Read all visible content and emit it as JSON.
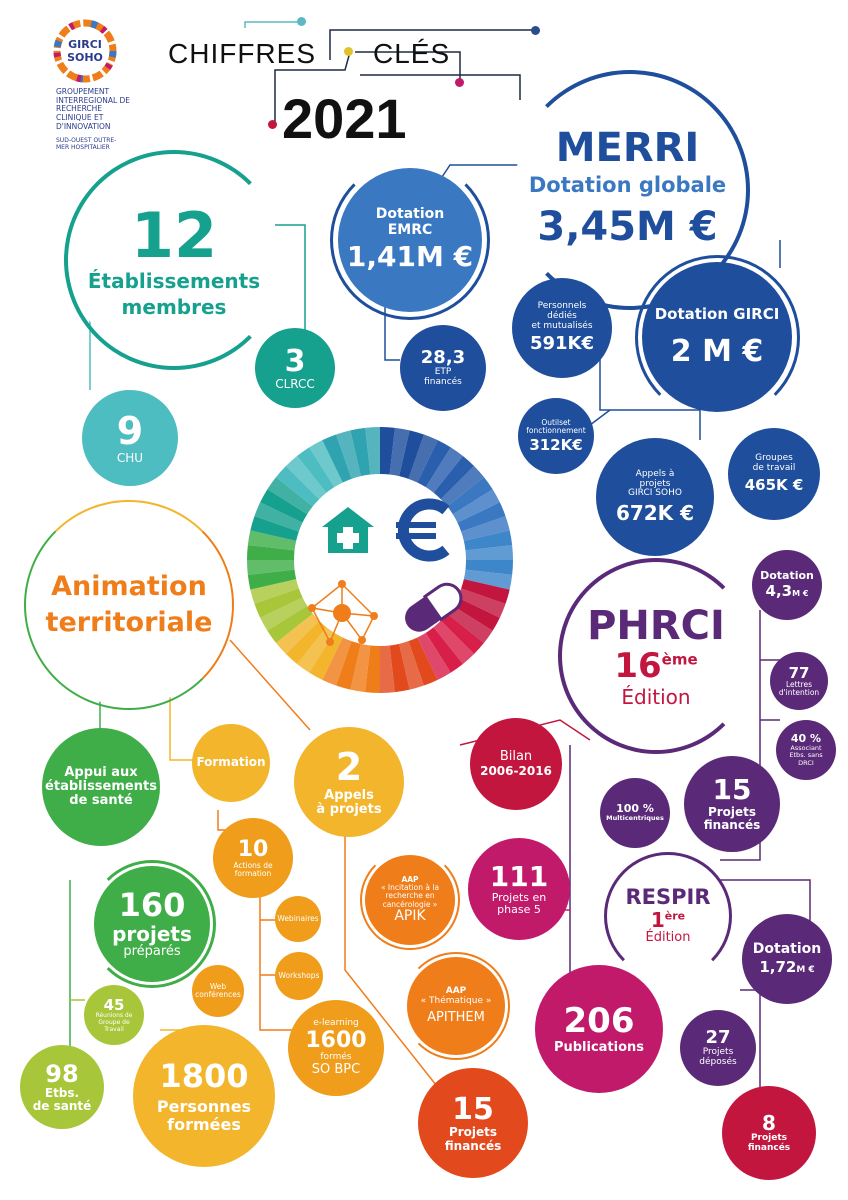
{
  "header": {
    "logo_line1": "GIRCI",
    "logo_line2": "SOHO",
    "org_name": "GROUPEMENT INTERREGIONAL DE RECHERCHE CLINIQUE ET D'INNOVATION",
    "org_sub": "SUD-OUEST OUTRE-MER HOSPITALIER",
    "title_left": "CHIFFRES",
    "title_right": "CLÉS",
    "year": "2021"
  },
  "merri": {
    "title": "MERRI",
    "subtitle": "Dotation globale",
    "value": "3,45M €",
    "emrc": {
      "label1": "Dotation",
      "label2": "EMRC",
      "value": "1,41M €"
    },
    "etp": {
      "value": "28,3",
      "label1": "ETP",
      "label2": "financés"
    },
    "girci": {
      "label": "Dotation GIRCI",
      "value": "2 M €"
    },
    "personnels": {
      "label1": "Personnels",
      "label2": "dédiés",
      "label3": "et mutualisés",
      "value": "591K€"
    },
    "outils": {
      "label1": "Outilset",
      "label2": "fonctionnement",
      "value": "312K€"
    },
    "appels": {
      "label1": "Appels à",
      "label2": "projets",
      "label3": "GIRCI SOHO",
      "value": "672K €"
    },
    "groupes": {
      "label1": "Groupes",
      "label2": "de travail",
      "value": "465K €"
    }
  },
  "etablissements": {
    "value": "12",
    "label1": "Établissements",
    "label2": "membres",
    "clrcc_value": "3",
    "clrcc_label": "CLRCC",
    "chu_value": "9",
    "chu_label": "CHU"
  },
  "animation": {
    "title1": "Animation",
    "title2": "territoriale",
    "appui": {
      "line1": "Appui aux",
      "line2": "établissements",
      "line3": "de santé"
    },
    "formation": "Formation",
    "appels": {
      "value": "2",
      "label1": "Appels",
      "label2": "à projets"
    },
    "actions": {
      "value": "10",
      "label1": "Actions de",
      "label2": "formation"
    },
    "webinaires": "Webinaires",
    "workshops": "Workshops",
    "webconf": {
      "line1": "Web",
      "line2": "conférences"
    },
    "elearning": {
      "label": "e-learning",
      "value": "1600",
      "label2": "formés",
      "label3": "SO BPC"
    },
    "projets_prep": {
      "value": "160",
      "label1": "projets",
      "label2": "préparés"
    },
    "reunions": {
      "value": "45",
      "label1": "Réunions de",
      "label2": "Groupe de",
      "label3": "Travail"
    },
    "etbs": {
      "value": "98",
      "label1": "Etbs.",
      "label2": "de santé"
    },
    "personnes": {
      "value": "1800",
      "label1": "Personnes",
      "label2": "formées"
    },
    "apik": {
      "label1": "AAP",
      "label2": "« Incitation à la",
      "label3": "recherche en",
      "label4": "cancérologie »",
      "value": "APIK"
    },
    "apithem": {
      "label1": "AAP",
      "label2": "« Thématique »",
      "value": "APITHEM"
    },
    "projets_fin": {
      "value": "15",
      "label1": "Projets",
      "label2": "financés"
    }
  },
  "phrci": {
    "title": "PHRCI",
    "edition_num": "16",
    "edition_sup": "ème",
    "edition_label": "Édition",
    "dotation": {
      "label": "Dotation",
      "value": "4,3",
      "unit": "M €"
    },
    "lettres": {
      "value": "77",
      "label1": "Lettres",
      "label2": "d'intention"
    },
    "associant": {
      "value": "40 %",
      "label1": "Associant",
      "label2": "Etbs. sans",
      "label3": "DRCI"
    },
    "projets": {
      "value": "15",
      "label1": "Projets",
      "label2": "financés"
    },
    "multi": {
      "value": "100 %",
      "label": "Multicentriques"
    },
    "bilan": {
      "label1": "Bilan",
      "label2": "2006-2016"
    },
    "phase5": {
      "value": "111",
      "label1": "Projets en",
      "label2": "phase 5"
    },
    "publications": {
      "value": "206",
      "label": "Publications"
    }
  },
  "respir": {
    "title": "RESPIR",
    "edition_num": "1",
    "edition_sup": "ère",
    "edition_label": "Édition",
    "dotation": {
      "label": "Dotation",
      "value": "1,72",
      "unit": "M €"
    },
    "deposes": {
      "value": "27",
      "label1": "Projets",
      "label2": "déposés"
    },
    "finances": {
      "value": "8",
      "label1": "Projets",
      "label2": "financés"
    }
  },
  "icons": [
    "hospital-icon",
    "euro-icon",
    "network-icon",
    "pill-icon"
  ],
  "colors": {
    "blue_dark": "#1f4e9c",
    "blue_mid": "#3a78c2",
    "teal": "#16a08e",
    "teal_light": "#4dbdc1",
    "green": "#3fae49",
    "lime": "#a7c63a",
    "yellow": "#f2b52b",
    "orange": "#ef7d1a",
    "red_orange": "#e24a1d",
    "crimson": "#c2163f",
    "magenta": "#c21a6b",
    "purple": "#5a2a78"
  }
}
